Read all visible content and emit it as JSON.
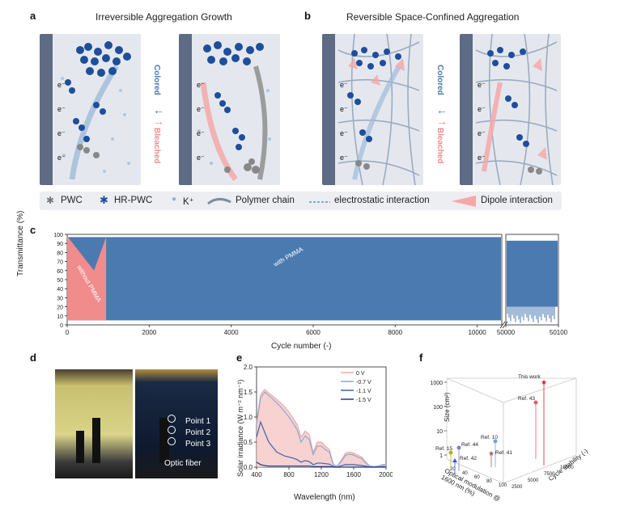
{
  "panels": {
    "a": {
      "letter": "a",
      "title": "Irreversible Aggregation Growth"
    },
    "b": {
      "letter": "b",
      "title": "Reversible Space-Confined Aggregation"
    },
    "c": {
      "letter": "c"
    },
    "d": {
      "letter": "d"
    },
    "e": {
      "letter": "e"
    },
    "f": {
      "letter": "f"
    }
  },
  "arrows": {
    "colored": "Colored",
    "bleached": "Bleached",
    "electron": "e⁻"
  },
  "legend": {
    "pwc": "PWC",
    "hrpwc": "HR-PWC",
    "kplus": "K⁺",
    "polymer": "Polymer chain",
    "electrostatic": "electrostatic interaction",
    "dipole": "Dipole interaction"
  },
  "colors": {
    "blue": "#4a7ab0",
    "pink": "#f08c8c",
    "darkblue": "#1f4e9a",
    "electrode": "#5d6b85"
  },
  "chart_data": [
    {
      "type": "area",
      "ylabel": "Transmittance (%)",
      "xlabel": "Cycle number (-)",
      "ylim": [
        0,
        100
      ],
      "y_ticks": [
        "0",
        "10",
        "20",
        "30",
        "40",
        "50",
        "60",
        "70",
        "80",
        "90",
        "100"
      ],
      "x_ticks": [
        "0",
        "2000",
        "4000",
        "6000",
        "8000",
        "10000",
        "50000",
        "50100"
      ],
      "series": [
        {
          "name": "without PMMA",
          "color": "#f08c8c",
          "upper": 97,
          "lower": 5,
          "x_end": 950
        },
        {
          "name": "with PMMA",
          "color": "#4a7ab0",
          "upper": 97,
          "lower": 5
        }
      ]
    },
    {
      "type": "line",
      "ylabel": "Solar irradiance (W m⁻² nm⁻¹)",
      "xlabel": "Wavelength (nm)",
      "xlim": [
        400,
        2000
      ],
      "ylim": [
        0,
        2.0
      ],
      "x_ticks": [
        "400",
        "800",
        "1200",
        "1600",
        "2000"
      ],
      "y_ticks": [
        "0.0",
        "0.5",
        "1.0",
        "1.5",
        "2.0"
      ],
      "wavelengths": [
        400,
        450,
        500,
        550,
        600,
        650,
        700,
        750,
        800,
        850,
        900,
        950,
        1000,
        1050,
        1100,
        1150,
        1200,
        1250,
        1300,
        1350,
        1400,
        1450,
        1500,
        1550,
        1600,
        1650,
        1700,
        1750,
        1800,
        1850,
        1900,
        1950,
        2000
      ],
      "series": [
        {
          "name": "0 V",
          "color": "#f2a9a9",
          "values": [
            0.9,
            1.45,
            1.55,
            1.48,
            1.42,
            1.35,
            1.28,
            1.2,
            1.1,
            0.98,
            0.85,
            0.6,
            0.72,
            0.65,
            0.3,
            0.5,
            0.5,
            0.42,
            0.35,
            0.05,
            0.02,
            0.15,
            0.28,
            0.3,
            0.28,
            0.24,
            0.2,
            0.1,
            0.02,
            0.01,
            0.02,
            0.05,
            0.06
          ]
        },
        {
          "name": "-0.7 V",
          "color": "#8aaad4",
          "values": [
            0.85,
            1.38,
            1.5,
            1.43,
            1.36,
            1.28,
            1.2,
            1.1,
            1.0,
            0.88,
            0.75,
            0.5,
            0.62,
            0.55,
            0.25,
            0.42,
            0.42,
            0.35,
            0.3,
            0.04,
            0.02,
            0.12,
            0.24,
            0.26,
            0.24,
            0.2,
            0.17,
            0.08,
            0.02,
            0.01,
            0.02,
            0.04,
            0.05
          ]
        },
        {
          "name": "-1.1 V",
          "color": "#3e63a8",
          "values": [
            0.6,
            0.9,
            0.7,
            0.5,
            0.4,
            0.3,
            0.26,
            0.22,
            0.2,
            0.18,
            0.15,
            0.1,
            0.13,
            0.11,
            0.05,
            0.08,
            0.08,
            0.07,
            0.06,
            0.01,
            0.0,
            0.03,
            0.05,
            0.05,
            0.05,
            0.04,
            0.03,
            0.02,
            0.0,
            0.0,
            0.0,
            0.01,
            0.01
          ]
        },
        {
          "name": "-1.5 V",
          "color": "#1c3f86",
          "values": [
            0.1,
            0.05,
            0.03,
            0.02,
            0.02,
            0.02,
            0.02,
            0.02,
            0.02,
            0.02,
            0.02,
            0.02,
            0.02,
            0.02,
            0.01,
            0.01,
            0.01,
            0.01,
            0.01,
            0.0,
            0.0,
            0.0,
            0.0,
            0.0,
            0.0,
            0.0,
            0.0,
            0.0,
            0.0,
            0.0,
            0.0,
            0.0,
            0.0
          ]
        }
      ]
    },
    {
      "type": "scatter",
      "zlabel": "Size (cm²)",
      "xlabel": "Optical modulation @ 1600 nm (%)",
      "ylabel": "Cycle stability (-)",
      "z_ticks": [
        "1",
        "10",
        "100",
        "1000"
      ],
      "x_ticks": [
        "20",
        "40",
        "60",
        "80",
        "100"
      ],
      "y_ticks": [
        "2500",
        "5000",
        "7500",
        "10000"
      ],
      "points": [
        {
          "label": "This work",
          "color": "#e02020",
          "marker": "star"
        },
        {
          "label": "Ref. 43",
          "color": "#e06060",
          "marker": "circle"
        },
        {
          "label": "Ref. 10",
          "color": "#6fa8d8",
          "marker": "circle"
        },
        {
          "label": "Ref. 44",
          "color": "#8080c0",
          "marker": "circle"
        },
        {
          "label": "Ref. 15",
          "color": "#b0b020",
          "marker": "circle"
        },
        {
          "label": "Ref. 42",
          "color": "#3060c0",
          "marker": "triangle"
        },
        {
          "label": "Ref. 41",
          "color": "#a06060",
          "marker": "star"
        }
      ]
    }
  ],
  "photo_d": {
    "points": [
      "Point 1",
      "Point 2",
      "Point 3"
    ],
    "fiber": "Optic fiber"
  }
}
